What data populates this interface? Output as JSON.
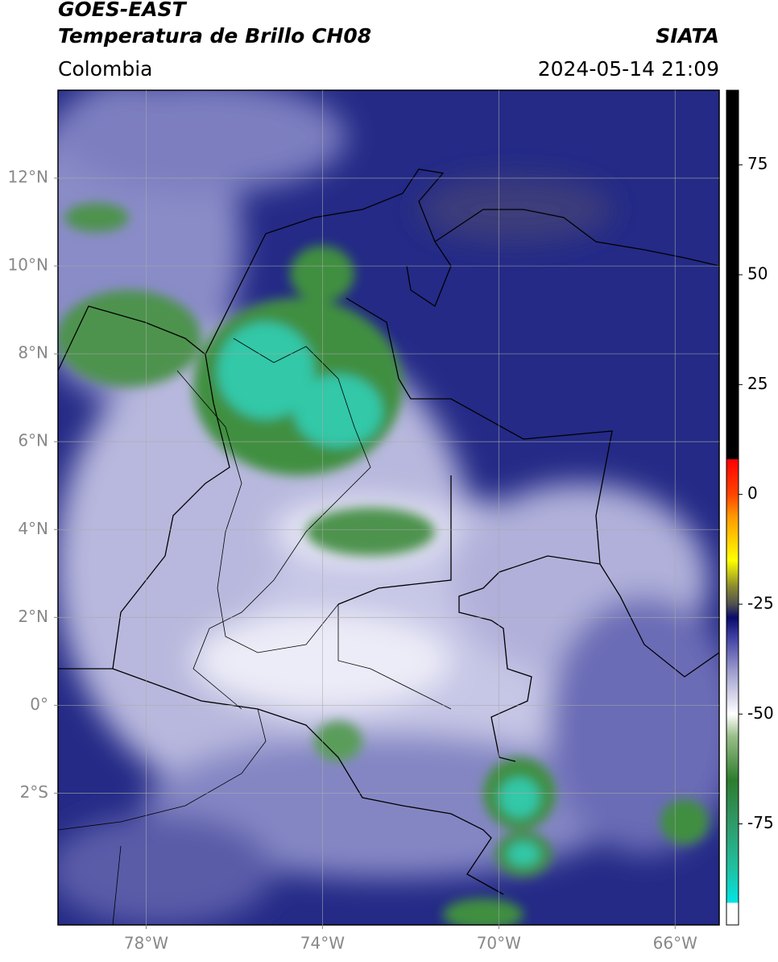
{
  "header": {
    "satellite": "GOES-EAST",
    "product": "Temperatura de Brillo CH08",
    "source": "SIATA",
    "region": "Colombia",
    "timestamp": "2024-05-14 21:09"
  },
  "map": {
    "xlim": [
      -80,
      -65
    ],
    "ylim": [
      -5,
      14
    ],
    "grid": true,
    "xticks": [
      {
        "value": -78,
        "label": "78°W"
      },
      {
        "value": -74,
        "label": "74°W"
      },
      {
        "value": -70,
        "label": "70°W"
      },
      {
        "value": -66,
        "label": "66°W"
      }
    ],
    "yticks": [
      {
        "value": 12,
        "label": "12°N"
      },
      {
        "value": 10,
        "label": "10°N"
      },
      {
        "value": 8,
        "label": "8°N"
      },
      {
        "value": 6,
        "label": "6°N"
      },
      {
        "value": 4,
        "label": "4°N"
      },
      {
        "value": 2,
        "label": "2°N"
      },
      {
        "value": 0,
        "label": "0°"
      },
      {
        "value": -2,
        "label": "2°S"
      }
    ]
  },
  "colorbar": {
    "lim": [
      -98,
      92
    ],
    "ticks": [
      75,
      50,
      25,
      0,
      -25,
      -50,
      -75
    ],
    "stops": [
      {
        "value": -98,
        "color": "#ffffff"
      },
      {
        "value": -93,
        "color": "#ffffff"
      },
      {
        "value": -93,
        "color": "#00e5e5"
      },
      {
        "value": -85,
        "color": "#20c0a0"
      },
      {
        "value": -75,
        "color": "#2f9a6a"
      },
      {
        "value": -65,
        "color": "#2e7d2e"
      },
      {
        "value": -55,
        "color": "#9abf8a"
      },
      {
        "value": -50,
        "color": "#ffffff"
      },
      {
        "value": -40,
        "color": "#9a9acc"
      },
      {
        "value": -32,
        "color": "#3a3aa0"
      },
      {
        "value": -28,
        "color": "#0a0a6a"
      },
      {
        "value": -25,
        "color": "#505050"
      },
      {
        "value": -21,
        "color": "#8a8a30"
      },
      {
        "value": -15,
        "color": "#ffff00"
      },
      {
        "value": -5,
        "color": "#ff9900"
      },
      {
        "value": 0,
        "color": "#ff4400"
      },
      {
        "value": 8,
        "color": "#ff0000"
      },
      {
        "value": 8,
        "color": "#000000"
      },
      {
        "value": 92,
        "color": "#000000"
      }
    ]
  }
}
